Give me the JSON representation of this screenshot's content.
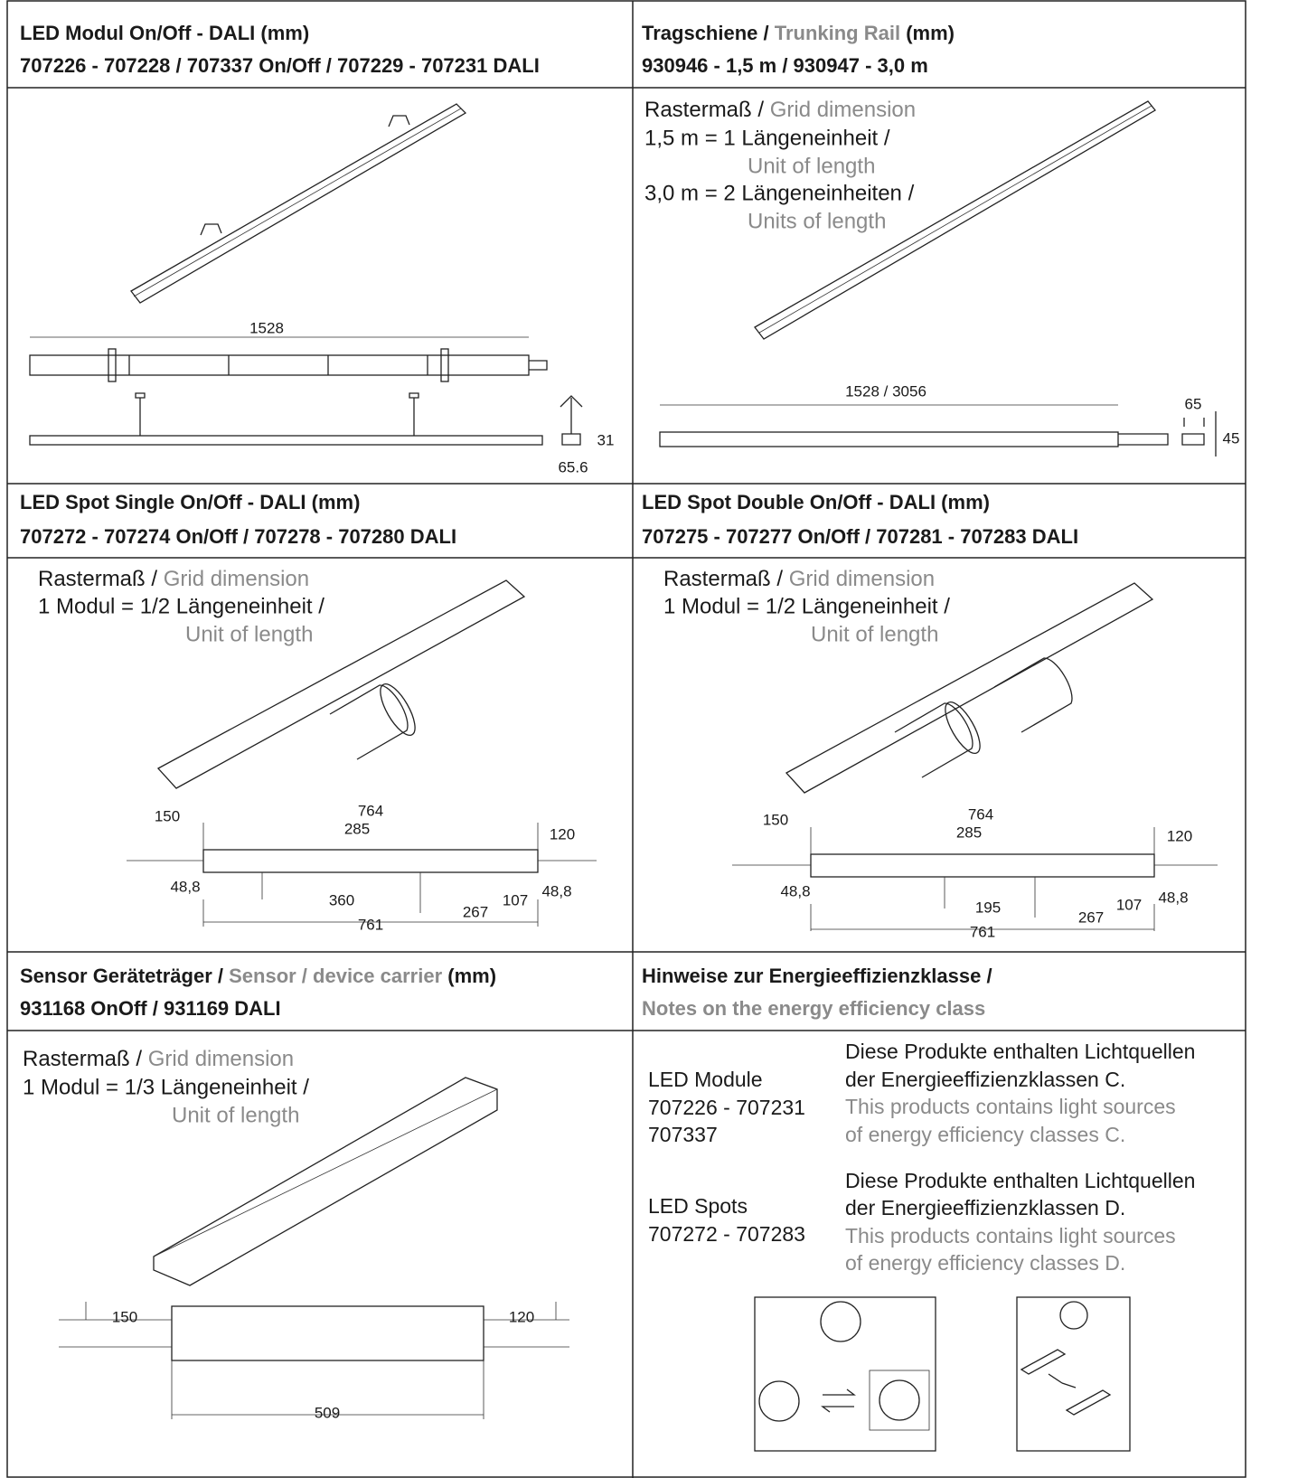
{
  "sections": [
    {
      "title": [
        "LED Modul On/Off - DALI (mm)"
      ],
      "subtitle": "707226 - 707228 / 707337 On/Off / 707229 - 707231 DALI",
      "dims": [
        "1528",
        "31",
        "65.6"
      ]
    },
    {
      "title": [
        "Tragschiene / ",
        "Trunking Rail",
        " (mm)"
      ],
      "subtitle": "930946 - 1,5 m / 930947 - 3,0 m",
      "notes": [
        [
          "Rastermaß / ",
          "Grid dimension"
        ],
        [
          "1,5 m = 1 Längeneinheit /"
        ],
        [
          "Unit of length"
        ],
        [
          "3,0 m = 2 Längeneinheiten /"
        ],
        [
          "Units of length"
        ]
      ],
      "dims": [
        "1528 / 3056",
        "65",
        "45"
      ]
    },
    {
      "title": [
        "LED Spot Single On/Off - DALI (mm)"
      ],
      "subtitle": "707272 - 707274 On/Off / 707278 - 707280 DALI",
      "notes": [
        [
          "Rastermaß / ",
          "Grid dimension"
        ],
        [
          "1 Modul = 1/2 Längeneinheit /"
        ],
        [
          "Unit of length"
        ]
      ],
      "dims": [
        "150",
        "764",
        "285",
        "120",
        "48,8",
        "360",
        "267",
        "107",
        "48,8",
        "761"
      ]
    },
    {
      "title": [
        "LED Spot Double On/Off - DALI (mm)"
      ],
      "subtitle": "707275 - 707277 On/Off / 707281 - 707283 DALI",
      "notes": [
        [
          "Rastermaß / ",
          "Grid dimension"
        ],
        [
          "1 Modul = 1/2 Längeneinheit /"
        ],
        [
          "Unit of length"
        ]
      ],
      "dims": [
        "150",
        "764",
        "285",
        "120",
        "48,8",
        "195",
        "267",
        "107",
        "48,8",
        "761"
      ]
    },
    {
      "title": [
        "Sensor Geräteträger / ",
        "Sensor / device carrier",
        " (mm)"
      ],
      "subtitle": "931168 OnOff / 931169 DALI",
      "notes": [
        [
          "Rastermaß / ",
          "Grid dimension"
        ],
        [
          "1 Modul = 1/3 Längeneinheit /"
        ],
        [
          "Unit of length"
        ]
      ],
      "dims": [
        "150",
        "120",
        "509"
      ]
    },
    {
      "title": [
        "Hinweise zur Energieeffizienzklasse /"
      ],
      "subtitle": "Notes on the energy efficiency class",
      "entries": [
        {
          "label": [
            "LED Module",
            "707226 - 707231",
            "707337"
          ],
          "text_de": [
            "Diese Produkte enthalten Lichtquellen",
            "der Energieeffizienzklassen C."
          ],
          "text_en": [
            "This products contains light sources",
            "of energy efficiency classes C."
          ]
        },
        {
          "label": [
            "LED Spots",
            "707272 - 707283"
          ],
          "text_de": [
            "Diese Produkte enthalten Lichtquellen",
            "der Energieeffizienzklassen D."
          ],
          "text_en": [
            "This products contains light sources",
            "of energy efficiency classes D."
          ]
        }
      ]
    }
  ]
}
